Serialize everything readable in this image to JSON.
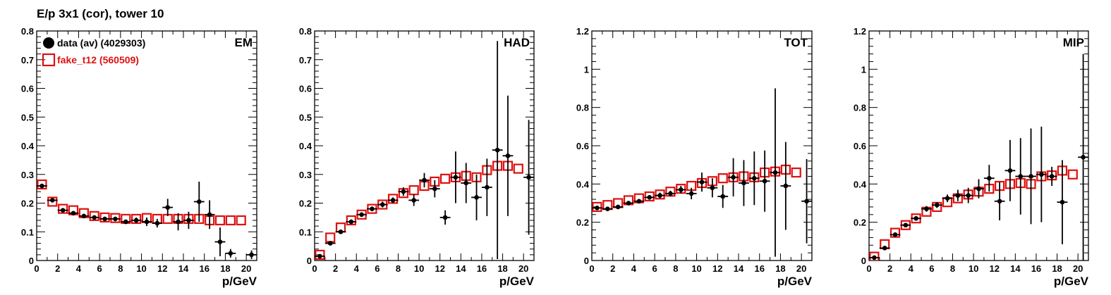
{
  "figure": {
    "title": "E/p 3x1 (cor), tower 10"
  },
  "legend": {
    "items": [
      {
        "label": "data (av) (4029303)",
        "color": "#000000",
        "marker": "filled-circle"
      },
      {
        "label": "fake_t12 (560509)",
        "color": "#dd1111",
        "marker": "open-square"
      }
    ]
  },
  "chart_data": [
    {
      "type": "scatter",
      "panel_label": "EM",
      "xlabel": "p/GeV",
      "xlim": [
        0,
        21
      ],
      "ylim": [
        0,
        0.8
      ],
      "xticks": [
        0,
        2,
        4,
        6,
        8,
        10,
        12,
        14,
        16,
        18,
        20
      ],
      "yticks": [
        0,
        0.1,
        0.2,
        0.3,
        0.4,
        0.5,
        0.6,
        0.7,
        0.8
      ],
      "ytick_labels": [
        "0",
        "0.1",
        "0.2",
        "0.3",
        "0.4",
        "0.5",
        "0.6",
        "0.7",
        "0.8"
      ],
      "series": [
        {
          "name": "data (av) (4029303)",
          "marker": "circle",
          "color": "#000000",
          "x": [
            0.5,
            1.5,
            2.5,
            3.5,
            4.5,
            5.5,
            6.5,
            7.5,
            8.5,
            9.5,
            10.5,
            11.5,
            12.5,
            13.5,
            14.5,
            15.5,
            16.5,
            17.5,
            18.5,
            20.5
          ],
          "y": [
            0.26,
            0.21,
            0.175,
            0.165,
            0.155,
            0.15,
            0.145,
            0.145,
            0.135,
            0.14,
            0.135,
            0.13,
            0.185,
            0.135,
            0.14,
            0.205,
            0.16,
            0.065,
            0.025,
            0.02
          ],
          "yerr": [
            0.005,
            0.005,
            0.005,
            0.005,
            0.005,
            0.005,
            0.005,
            0.005,
            0.008,
            0.01,
            0.015,
            0.015,
            0.03,
            0.03,
            0.03,
            0.07,
            0.05,
            0.05,
            0.015,
            0.015
          ]
        },
        {
          "name": "fake_t12 (560509)",
          "marker": "open-square",
          "color": "#dd1111",
          "x": [
            0.5,
            1.5,
            2.5,
            3.5,
            4.5,
            5.5,
            6.5,
            7.5,
            8.5,
            9.5,
            10.5,
            11.5,
            12.5,
            13.5,
            14.5,
            15.5,
            16.5,
            17.5,
            18.5,
            19.5
          ],
          "y": [
            0.265,
            0.205,
            0.18,
            0.175,
            0.165,
            0.155,
            0.15,
            0.148,
            0.145,
            0.145,
            0.148,
            0.145,
            0.145,
            0.145,
            0.145,
            0.145,
            0.14,
            0.14,
            0.14,
            0.14
          ]
        }
      ]
    },
    {
      "type": "scatter",
      "panel_label": "HAD",
      "xlabel": "p/GeV",
      "xlim": [
        0,
        21
      ],
      "ylim": [
        0,
        0.8
      ],
      "xticks": [
        0,
        2,
        4,
        6,
        8,
        10,
        12,
        14,
        16,
        18,
        20
      ],
      "yticks": [
        0,
        0.1,
        0.2,
        0.3,
        0.4,
        0.5,
        0.6,
        0.7,
        0.8
      ],
      "ytick_labels": [
        "0",
        "0.1",
        "0.2",
        "0.3",
        "0.4",
        "0.5",
        "0.6",
        "0.7",
        "0.8"
      ],
      "series": [
        {
          "name": "data (av) (4029303)",
          "marker": "circle",
          "color": "#000000",
          "x": [
            0.5,
            1.5,
            2.5,
            3.5,
            4.5,
            5.5,
            6.5,
            7.5,
            8.5,
            9.5,
            10.5,
            11.5,
            12.5,
            13.5,
            14.5,
            15.5,
            16.5,
            17.5,
            18.5,
            20.5
          ],
          "y": [
            0.015,
            0.06,
            0.1,
            0.135,
            0.16,
            0.18,
            0.195,
            0.21,
            0.24,
            0.21,
            0.28,
            0.25,
            0.15,
            0.29,
            0.27,
            0.22,
            0.255,
            0.385,
            0.365,
            0.29
          ],
          "yerr": [
            0.005,
            0.005,
            0.005,
            0.008,
            0.008,
            0.008,
            0.01,
            0.01,
            0.015,
            0.02,
            0.025,
            0.03,
            0.025,
            0.09,
            0.07,
            0.08,
            0.1,
            0.38,
            0.21,
            0.2
          ]
        },
        {
          "name": "fake_t12 (560509)",
          "marker": "open-square",
          "color": "#dd1111",
          "x": [
            0.5,
            1.5,
            2.5,
            3.5,
            4.5,
            5.5,
            6.5,
            7.5,
            8.5,
            9.5,
            10.5,
            11.5,
            12.5,
            13.5,
            14.5,
            15.5,
            16.5,
            17.5,
            18.5,
            19.5
          ],
          "y": [
            0.02,
            0.08,
            0.115,
            0.14,
            0.16,
            0.18,
            0.195,
            0.215,
            0.235,
            0.245,
            0.26,
            0.275,
            0.285,
            0.29,
            0.295,
            0.29,
            0.315,
            0.33,
            0.33,
            0.32
          ]
        }
      ]
    },
    {
      "type": "scatter",
      "panel_label": "TOT",
      "xlabel": "p/GeV",
      "xlim": [
        0,
        21
      ],
      "ylim": [
        0,
        1.2
      ],
      "xticks": [
        0,
        2,
        4,
        6,
        8,
        10,
        12,
        14,
        16,
        18,
        20
      ],
      "yticks": [
        0,
        0.2,
        0.4,
        0.6,
        0.8,
        1.0,
        1.2
      ],
      "ytick_labels": [
        "0",
        "0.2",
        "0.4",
        "0.6",
        "0.8",
        "1",
        "1.2"
      ],
      "series": [
        {
          "name": "data (av) (4029303)",
          "marker": "circle",
          "color": "#000000",
          "x": [
            0.5,
            1.5,
            2.5,
            3.5,
            4.5,
            5.5,
            6.5,
            7.5,
            8.5,
            9.5,
            10.5,
            11.5,
            12.5,
            13.5,
            14.5,
            15.5,
            16.5,
            17.5,
            18.5,
            20.5
          ],
          "y": [
            0.275,
            0.27,
            0.28,
            0.3,
            0.31,
            0.33,
            0.34,
            0.35,
            0.37,
            0.35,
            0.41,
            0.38,
            0.335,
            0.435,
            0.405,
            0.43,
            0.415,
            0.46,
            0.39,
            0.31
          ],
          "yerr": [
            0.01,
            0.01,
            0.01,
            0.01,
            0.01,
            0.01,
            0.015,
            0.015,
            0.02,
            0.03,
            0.05,
            0.05,
            0.06,
            0.1,
            0.12,
            0.14,
            0.16,
            0.44,
            0.23,
            0.22
          ]
        },
        {
          "name": "fake_t12 (560509)",
          "marker": "open-square",
          "color": "#dd1111",
          "x": [
            0.5,
            1.5,
            2.5,
            3.5,
            4.5,
            5.5,
            6.5,
            7.5,
            8.5,
            9.5,
            10.5,
            11.5,
            12.5,
            13.5,
            14.5,
            15.5,
            16.5,
            17.5,
            18.5,
            19.5
          ],
          "y": [
            0.28,
            0.29,
            0.3,
            0.315,
            0.325,
            0.335,
            0.345,
            0.36,
            0.375,
            0.39,
            0.405,
            0.415,
            0.43,
            0.435,
            0.44,
            0.435,
            0.46,
            0.465,
            0.475,
            0.46
          ]
        }
      ]
    },
    {
      "type": "scatter",
      "panel_label": "MIP",
      "xlabel": "p/GeV",
      "xlim": [
        0,
        21
      ],
      "ylim": [
        0,
        1.2
      ],
      "xticks": [
        0,
        2,
        4,
        6,
        8,
        10,
        12,
        14,
        16,
        18,
        20
      ],
      "yticks": [
        0,
        0.2,
        0.4,
        0.6,
        0.8,
        1.0,
        1.2
      ],
      "ytick_labels": [
        "0",
        "0.2",
        "0.4",
        "0.6",
        "0.8",
        "1",
        "1.2"
      ],
      "series": [
        {
          "name": "data (av) (4029303)",
          "marker": "circle",
          "color": "#000000",
          "x": [
            0.5,
            1.5,
            2.5,
            3.5,
            4.5,
            5.5,
            6.5,
            7.5,
            8.5,
            9.5,
            10.5,
            11.5,
            12.5,
            13.5,
            14.5,
            15.5,
            16.5,
            17.5,
            18.5,
            20.5
          ],
          "y": [
            0.015,
            0.065,
            0.135,
            0.185,
            0.22,
            0.27,
            0.29,
            0.325,
            0.34,
            0.34,
            0.375,
            0.43,
            0.31,
            0.47,
            0.44,
            0.44,
            0.45,
            0.44,
            0.305,
            0.54
          ],
          "yerr": [
            0.005,
            0.005,
            0.01,
            0.01,
            0.01,
            0.015,
            0.015,
            0.02,
            0.03,
            0.04,
            0.05,
            0.07,
            0.1,
            0.16,
            0.2,
            0.25,
            0.25,
            0.05,
            0.22,
            0.54
          ]
        },
        {
          "name": "fake_t12 (560509)",
          "marker": "open-square",
          "color": "#dd1111",
          "x": [
            0.5,
            1.5,
            2.5,
            3.5,
            4.5,
            5.5,
            6.5,
            7.5,
            8.5,
            9.5,
            10.5,
            11.5,
            12.5,
            13.5,
            14.5,
            15.5,
            16.5,
            17.5,
            18.5,
            19.5
          ],
          "y": [
            0.02,
            0.085,
            0.145,
            0.185,
            0.22,
            0.255,
            0.28,
            0.305,
            0.325,
            0.345,
            0.36,
            0.375,
            0.39,
            0.4,
            0.405,
            0.4,
            0.44,
            0.445,
            0.47,
            0.45
          ]
        }
      ]
    }
  ]
}
